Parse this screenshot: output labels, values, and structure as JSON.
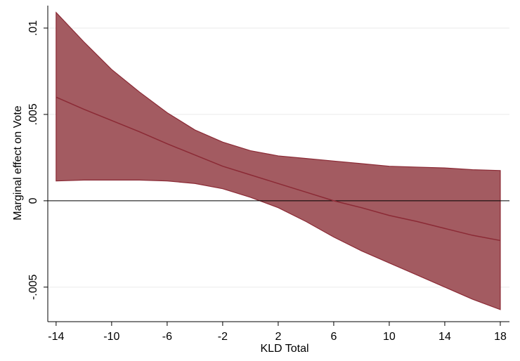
{
  "chart_data": {
    "type": "line",
    "xlabel": "KLD Total",
    "ylabel": "Marginal effect on Vote",
    "x": [
      -14,
      -12,
      -10,
      -8,
      -6,
      -4,
      -2,
      0,
      2,
      4,
      6,
      8,
      10,
      12,
      14,
      16,
      18
    ],
    "values": [
      0.006,
      0.0053,
      0.00465,
      0.004,
      0.0033,
      0.00265,
      0.002,
      0.0015,
      0.001,
      0.0005,
      0.0,
      -0.0004,
      -0.00085,
      -0.0012,
      -0.0016,
      -0.002,
      -0.0023
    ],
    "upper": [
      0.0109,
      0.0092,
      0.0076,
      0.0063,
      0.0051,
      0.0041,
      0.0034,
      0.0029,
      0.0026,
      0.00245,
      0.0023,
      0.00215,
      0.002,
      0.00195,
      0.0019,
      0.0018,
      0.00175
    ],
    "lower": [
      0.00115,
      0.0012,
      0.0012,
      0.0012,
      0.00115,
      0.001,
      0.0007,
      0.0002,
      -0.0004,
      -0.0012,
      -0.0021,
      -0.0029,
      -0.0036,
      -0.0043,
      -0.005,
      -0.0057,
      -0.0063
    ],
    "color": "#8b2a35",
    "band_color": "#a35b61",
    "reference_line": 0,
    "xlim": [
      -14.6,
      18.66
    ],
    "ylim": [
      -0.007,
      0.0113
    ],
    "xticks": [
      -14,
      -10,
      -6,
      -2,
      2,
      6,
      10,
      14,
      18
    ],
    "yticks": [
      {
        "value": -0.005,
        "label": "-.005"
      },
      0,
      {
        "value": 0.005,
        "label": ".005"
      },
      {
        "value": 0.01,
        "label": ".01"
      }
    ],
    "grid": true
  }
}
